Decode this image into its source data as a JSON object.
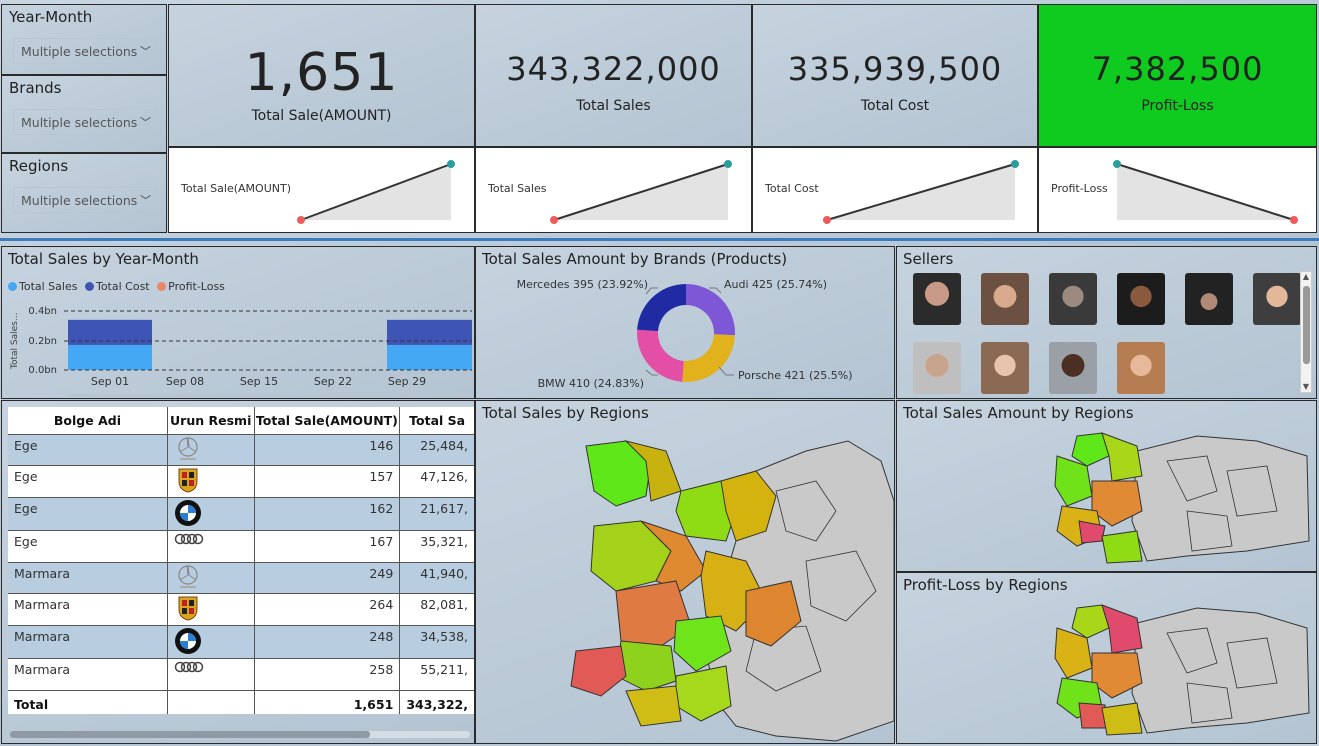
{
  "slicers": [
    {
      "title": "Year-Month",
      "value": "Multiple selections"
    },
    {
      "title": "Brands",
      "value": "Multiple selections"
    },
    {
      "title": "Regions",
      "value": "Multiple selections"
    }
  ],
  "kpis": [
    {
      "value": "1,651",
      "label": "Total Sale(AMOUNT)",
      "spark_label": "Total Sale(AMOUNT)",
      "trend": "up"
    },
    {
      "value": "343,322,000",
      "label": "Total Sales",
      "spark_label": "Total Sales",
      "trend": "up"
    },
    {
      "value": "335,939,500",
      "label": "Total Cost",
      "spark_label": "Total Cost",
      "trend": "up"
    },
    {
      "value": "7,382,500",
      "label": "Profit-Loss",
      "spark_label": "Profit-Loss",
      "trend": "down",
      "bg_color": "#0fcb1f"
    }
  ],
  "time_chart": {
    "title": "Total Sales by Year-Month",
    "legend": [
      {
        "name": "Total Sales",
        "color": "#45a8f4"
      },
      {
        "name": "Total Cost",
        "color": "#3f55b5"
      },
      {
        "name": "Profit-Loss",
        "color": "#e88866"
      }
    ],
    "y_axis_label": "Total Sales...",
    "y_ticks": [
      "0.4bn",
      "0.2bn",
      "0.0bn"
    ],
    "x_ticks": [
      "Sep 01",
      "Sep 08",
      "Sep 15",
      "Sep 22",
      "Sep 29"
    ]
  },
  "chart_data": [
    {
      "type": "bar",
      "title": "Total Sales by Year-Month",
      "ylabel": "Total Sales...",
      "ylim": [
        0,
        0.4
      ],
      "y_unit": "bn",
      "series": [
        {
          "name": "Total Sales",
          "values": [
            0.17,
            0.17
          ]
        },
        {
          "name": "Total Cost",
          "values": [
            0.17,
            0.17
          ]
        },
        {
          "name": "Profit-Loss",
          "values": [
            0.004,
            0.004
          ]
        }
      ],
      "categories": [
        "Sep 01",
        "Sep 29"
      ],
      "grid": true,
      "legend": "top-left"
    },
    {
      "type": "pie",
      "title": "Total Sales Amount by Brands (Products)",
      "categories": [
        "Audi",
        "Porsche",
        "BMW",
        "Mercedes"
      ],
      "values": [
        425,
        421,
        410,
        395
      ],
      "percents": [
        "25.74%",
        "25.5%",
        "24.83%",
        "23.92%"
      ],
      "colors": [
        "#7d57d6",
        "#e1b21b",
        "#e34fa5",
        "#1f2aa3"
      ],
      "labels": [
        "Audi 425 (25.74%)",
        "Porsche 421 (25.5%)",
        "BMW 410 (24.83%)",
        "Mercedes 395 (23.92%)"
      ]
    }
  ],
  "donut_title": "Total Sales Amount by Brands (Products)",
  "sellers": {
    "title": "Sellers",
    "photos": [
      "seller-photo-1",
      "seller-photo-2",
      "seller-photo-3",
      "seller-photo-4",
      "seller-photo-5",
      "seller-photo-6",
      "seller-photo-7",
      "seller-photo-8",
      "seller-photo-9",
      "seller-photo-10"
    ]
  },
  "table": {
    "headers": [
      "Bolge Adi",
      "Urun Resmi",
      "Total Sale(AMOUNT)",
      "Total Sa"
    ],
    "rows": [
      {
        "region": "Ege",
        "logo": "mercedes-logo-icon",
        "amount": "146",
        "sales": "25,484,"
      },
      {
        "region": "Ege",
        "logo": "porsche-logo-icon",
        "amount": "157",
        "sales": "47,126,"
      },
      {
        "region": "Ege",
        "logo": "bmw-logo-icon",
        "amount": "162",
        "sales": "21,617,"
      },
      {
        "region": "Ege",
        "logo": "audi-logo-icon",
        "amount": "167",
        "sales": "35,321,"
      },
      {
        "region": "Marmara",
        "logo": "mercedes-logo-icon",
        "amount": "249",
        "sales": "41,940,"
      },
      {
        "region": "Marmara",
        "logo": "porsche-logo-icon",
        "amount": "264",
        "sales": "82,081,"
      },
      {
        "region": "Marmara",
        "logo": "bmw-logo-icon",
        "amount": "248",
        "sales": "34,538,"
      },
      {
        "region": "Marmara",
        "logo": "audi-logo-icon",
        "amount": "258",
        "sales": "55,211,"
      }
    ],
    "total": {
      "label": "Total",
      "amount": "1,651",
      "sales": "343,322,"
    }
  },
  "maps": [
    {
      "title": "Total Sales by Regions"
    },
    {
      "title": "Total Sales Amount by Regions"
    },
    {
      "title": "Profit-Loss by Regions"
    }
  ]
}
